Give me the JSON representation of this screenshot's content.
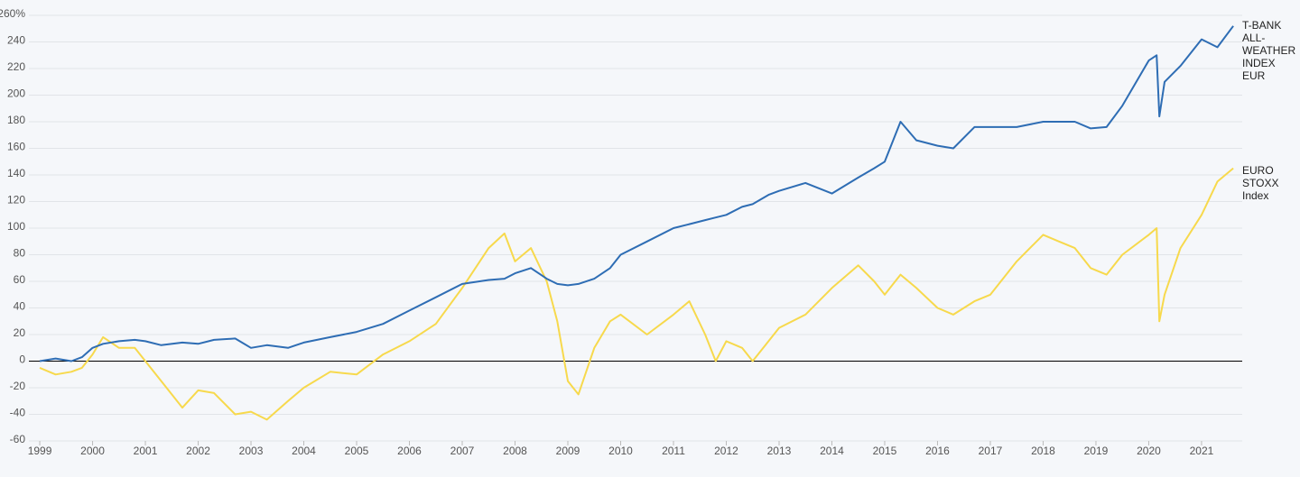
{
  "chart_data": {
    "type": "line",
    "x": [
      1999.0,
      1999.3,
      1999.6,
      1999.8,
      2000.0,
      2000.2,
      2000.5,
      2000.8,
      2001.0,
      2001.3,
      2001.7,
      2002.0,
      2002.3,
      2002.7,
      2003.0,
      2003.3,
      2003.7,
      2004.0,
      2004.5,
      2005.0,
      2005.5,
      2006.0,
      2006.5,
      2007.0,
      2007.5,
      2007.8,
      2008.0,
      2008.3,
      2008.6,
      2008.8,
      2009.0,
      2009.2,
      2009.5,
      2009.8,
      2010.0,
      2010.5,
      2011.0,
      2011.3,
      2011.6,
      2011.8,
      2012.0,
      2012.3,
      2012.5,
      2012.8,
      2013.0,
      2013.5,
      2014.0,
      2014.5,
      2014.8,
      2015.0,
      2015.3,
      2015.6,
      2016.0,
      2016.3,
      2016.7,
      2017.0,
      2017.5,
      2018.0,
      2018.3,
      2018.6,
      2018.9,
      2019.2,
      2019.5,
      2020.0,
      2020.15,
      2020.2,
      2020.3,
      2020.6,
      2021.0,
      2021.3,
      2021.6
    ],
    "series": [
      {
        "name": "T-BANK ALL-WEATHER INDEX EUR",
        "color": "#2e6db4",
        "values": [
          0,
          2,
          0,
          3,
          10,
          13,
          15,
          16,
          15,
          12,
          14,
          13,
          16,
          17,
          10,
          12,
          10,
          14,
          18,
          22,
          28,
          38,
          48,
          58,
          61,
          62,
          66,
          70,
          62,
          58,
          57,
          58,
          62,
          70,
          80,
          90,
          100,
          103,
          106,
          108,
          110,
          116,
          118,
          125,
          128,
          134,
          126,
          138,
          145,
          150,
          180,
          166,
          162,
          160,
          176,
          176,
          176,
          180,
          180,
          180,
          175,
          176,
          192,
          226,
          230,
          184,
          210,
          222,
          242,
          236,
          252
        ]
      },
      {
        "name": "EURO STOXX Index",
        "color": "#f7d94c",
        "values": [
          -5,
          -10,
          -8,
          -5,
          5,
          18,
          10,
          10,
          0,
          -15,
          -35,
          -22,
          -24,
          -40,
          -38,
          -44,
          -30,
          -20,
          -8,
          -10,
          5,
          15,
          28,
          55,
          85,
          96,
          75,
          85,
          60,
          30,
          -15,
          -25,
          10,
          30,
          35,
          20,
          35,
          45,
          20,
          0,
          15,
          10,
          0,
          15,
          25,
          35,
          55,
          72,
          60,
          50,
          65,
          55,
          40,
          35,
          45,
          50,
          75,
          95,
          90,
          85,
          70,
          65,
          80,
          95,
          100,
          30,
          50,
          85,
          110,
          135,
          145
        ]
      }
    ],
    "xlim": [
      1998.76,
      2021.77
    ],
    "xticks": [
      1999,
      2000,
      2001,
      2002,
      2003,
      2004,
      2005,
      2006,
      2007,
      2008,
      2009,
      2010,
      2011,
      2012,
      2013,
      2014,
      2015,
      2016,
      2017,
      2018,
      2019,
      2020,
      2021
    ],
    "ylim": [
      -60,
      260
    ],
    "yticks": [
      -60,
      -40,
      -20,
      0,
      20,
      40,
      60,
      80,
      100,
      120,
      140,
      160,
      180,
      200,
      220,
      240,
      {
        "value": 260,
        "label": "260%"
      }
    ],
    "grid": true
  }
}
